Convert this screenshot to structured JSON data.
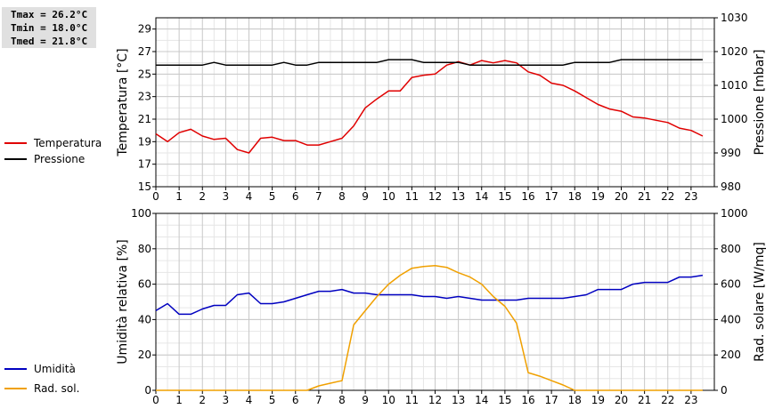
{
  "stats": {
    "tmax": "Tmax = 26.2°C",
    "tmin": "Tmin = 18.0°C",
    "tmed": "Tmed = 21.8°C"
  },
  "chart_data": [
    {
      "type": "line",
      "xlabel": "",
      "xlim": [
        0,
        24
      ],
      "xticks": [
        0,
        1,
        2,
        3,
        4,
        5,
        6,
        7,
        8,
        9,
        10,
        11,
        12,
        13,
        14,
        15,
        16,
        17,
        18,
        19,
        20,
        21,
        22,
        23
      ],
      "ylabel": "Temperatura [°C]",
      "ylim": [
        15,
        30
      ],
      "yticks": [
        15,
        17,
        19,
        21,
        23,
        25,
        27,
        29
      ],
      "y2label": "Pressione [mbar]",
      "y2lim": [
        980,
        1030
      ],
      "y2ticks": [
        980,
        990,
        1000,
        1010,
        1020,
        1030
      ],
      "grid": true,
      "legend_position": "left",
      "series": [
        {
          "name": "Temperatura",
          "axis": "left",
          "color": "#e00000",
          "x": [
            0,
            0.5,
            1,
            1.5,
            2,
            2.5,
            3,
            3.5,
            4,
            4.5,
            5,
            5.5,
            6,
            6.5,
            7,
            7.5,
            8,
            8.5,
            9,
            9.5,
            10,
            10.5,
            11,
            11.5,
            12,
            12.5,
            13,
            13.5,
            14,
            14.5,
            15,
            15.5,
            16,
            16.5,
            17,
            17.5,
            18,
            18.5,
            19,
            19.5,
            20,
            20.5,
            21,
            21.5,
            22,
            22.5,
            23,
            23.5
          ],
          "values": [
            19.7,
            19.0,
            19.8,
            20.1,
            19.5,
            19.2,
            19.3,
            18.3,
            18.0,
            19.3,
            19.4,
            19.1,
            19.1,
            18.7,
            18.7,
            19.0,
            19.3,
            20.4,
            22.0,
            22.8,
            23.5,
            23.5,
            24.7,
            24.9,
            25.0,
            25.8,
            26.1,
            25.8,
            26.2,
            26.0,
            26.2,
            26.0,
            25.2,
            24.9,
            24.2,
            24.0,
            23.5,
            22.9,
            22.3,
            21.9,
            21.7,
            21.2,
            21.1,
            20.9,
            20.7,
            20.2,
            20.0,
            19.5
          ]
        },
        {
          "name": "Pressione",
          "axis": "right",
          "color": "#000000",
          "x": [
            0,
            0.5,
            1,
            1.5,
            2,
            2.5,
            3,
            3.5,
            4,
            4.5,
            5,
            5.5,
            6,
            6.5,
            7,
            7.5,
            8,
            8.5,
            9,
            9.5,
            10,
            10.5,
            11,
            11.5,
            12,
            12.5,
            13,
            13.5,
            14,
            14.5,
            15,
            15.5,
            16,
            16.5,
            17,
            17.5,
            18,
            18.5,
            19,
            19.5,
            20,
            20.5,
            21,
            21.5,
            22,
            22.5,
            23,
            23.5
          ],
          "values": [
            1016,
            1016,
            1016,
            1016,
            1016,
            1016.8,
            1016,
            1016,
            1016,
            1016,
            1016,
            1016.8,
            1016,
            1016,
            1016.8,
            1016.8,
            1016.8,
            1016.8,
            1016.8,
            1016.8,
            1017.6,
            1017.6,
            1017.6,
            1016.8,
            1016.8,
            1016.8,
            1016.8,
            1016,
            1016,
            1016,
            1016,
            1016,
            1016,
            1016,
            1016,
            1016,
            1016.8,
            1016.8,
            1016.8,
            1016.8,
            1017.6,
            1017.6,
            1017.6,
            1017.6,
            1017.6,
            1017.6,
            1017.6,
            1017.6
          ]
        }
      ]
    },
    {
      "type": "line",
      "xlabel": "",
      "xlim": [
        0,
        24
      ],
      "xticks": [
        0,
        1,
        2,
        3,
        4,
        5,
        6,
        7,
        8,
        9,
        10,
        11,
        12,
        13,
        14,
        15,
        16,
        17,
        18,
        19,
        20,
        21,
        22,
        23
      ],
      "ylabel": "Umidità relativa [%]",
      "ylim": [
        0,
        100
      ],
      "yticks": [
        0,
        20,
        40,
        60,
        80,
        100
      ],
      "y2label": "Rad. solare [W/mq]",
      "y2lim": [
        0,
        1000
      ],
      "y2ticks": [
        0,
        200,
        400,
        600,
        800,
        1000
      ],
      "grid": true,
      "legend_position": "left",
      "series": [
        {
          "name": "Umidità",
          "axis": "left",
          "color": "#0000c0",
          "x": [
            0,
            0.5,
            1,
            1.5,
            2,
            2.5,
            3,
            3.5,
            4,
            4.5,
            5,
            5.5,
            6,
            6.5,
            7,
            7.5,
            8,
            8.5,
            9,
            9.5,
            10,
            10.5,
            11,
            11.5,
            12,
            12.5,
            13,
            13.5,
            14,
            14.5,
            15,
            15.5,
            16,
            16.5,
            17,
            17.5,
            18,
            18.5,
            19,
            19.5,
            20,
            20.5,
            21,
            21.5,
            22,
            22.5,
            23,
            23.5
          ],
          "values": [
            45,
            49,
            43,
            43,
            46,
            48,
            48,
            54,
            55,
            49,
            49,
            50,
            52,
            54,
            56,
            56,
            57,
            55,
            55,
            54,
            54,
            54,
            54,
            53,
            53,
            52,
            53,
            52,
            51,
            51,
            51,
            51,
            52,
            52,
            52,
            52,
            53,
            54,
            57,
            57,
            57,
            60,
            61,
            61,
            61,
            64,
            64,
            65
          ]
        },
        {
          "name": "Rad. sol.",
          "axis": "right",
          "color": "#f0a000",
          "x": [
            0,
            1,
            2,
            3,
            4,
            5,
            6,
            6.5,
            7,
            7.5,
            8,
            8.5,
            9,
            9.5,
            10,
            10.5,
            11,
            11.5,
            12,
            12.5,
            13,
            13.5,
            14,
            14.5,
            15,
            15.5,
            16,
            16.5,
            17,
            17.5,
            18,
            19,
            20,
            21,
            22,
            23,
            23.5
          ],
          "values": [
            0,
            0,
            0,
            0,
            0,
            0,
            0,
            0,
            25,
            40,
            55,
            370,
            450,
            530,
            600,
            650,
            690,
            700,
            705,
            695,
            665,
            640,
            600,
            530,
            475,
            380,
            100,
            80,
            55,
            30,
            0,
            0,
            0,
            0,
            0,
            0,
            0
          ]
        }
      ]
    }
  ]
}
